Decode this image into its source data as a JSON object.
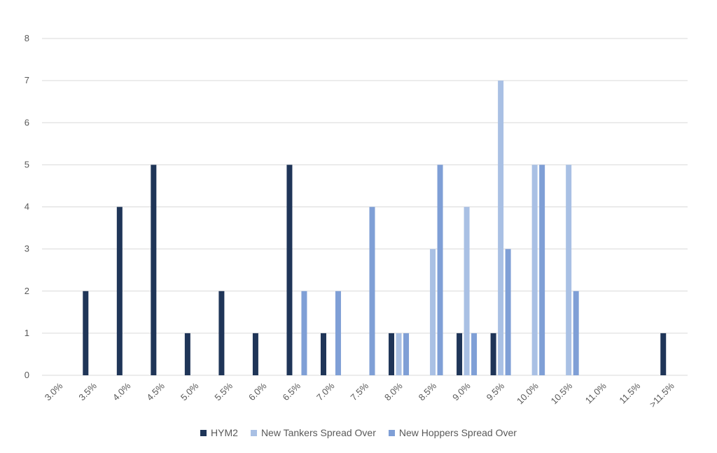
{
  "chart_data": {
    "type": "bar",
    "categories": [
      "3.0%",
      "3.5%",
      "4.0%",
      "4.5%",
      "5.0%",
      "5.5%",
      "6.0%",
      "6.5%",
      "7.0%",
      "7.5%",
      "8.0%",
      "8.5%",
      "9.0%",
      "9.5%",
      "10.0%",
      "10.5%",
      "11.0%",
      "11.5%",
      ">11.5%"
    ],
    "series": [
      {
        "name": "HYM2",
        "color": "#1f3558",
        "values": [
          0,
          2,
          4,
          5,
          1,
          2,
          1,
          5,
          1,
          0,
          1,
          0,
          1,
          1,
          0,
          0,
          0,
          0,
          1
        ]
      },
      {
        "name": "New Tankers Spread Over",
        "color": "#a9c0e4",
        "values": [
          0,
          0,
          0,
          0,
          0,
          0,
          0,
          0,
          0,
          0,
          1,
          3,
          4,
          7,
          5,
          5,
          0,
          0,
          0
        ]
      },
      {
        "name": "New Hoppers Spread Over",
        "color": "#7f9fd6",
        "values": [
          0,
          0,
          0,
          0,
          0,
          0,
          0,
          2,
          2,
          4,
          1,
          5,
          1,
          3,
          5,
          2,
          0,
          0,
          0
        ]
      }
    ],
    "yticks": [
      "0",
      "1",
      "2",
      "3",
      "4",
      "5",
      "6",
      "7",
      "8"
    ],
    "ylim": [
      0,
      8
    ],
    "grid": true,
    "legend_position": "bottom"
  }
}
